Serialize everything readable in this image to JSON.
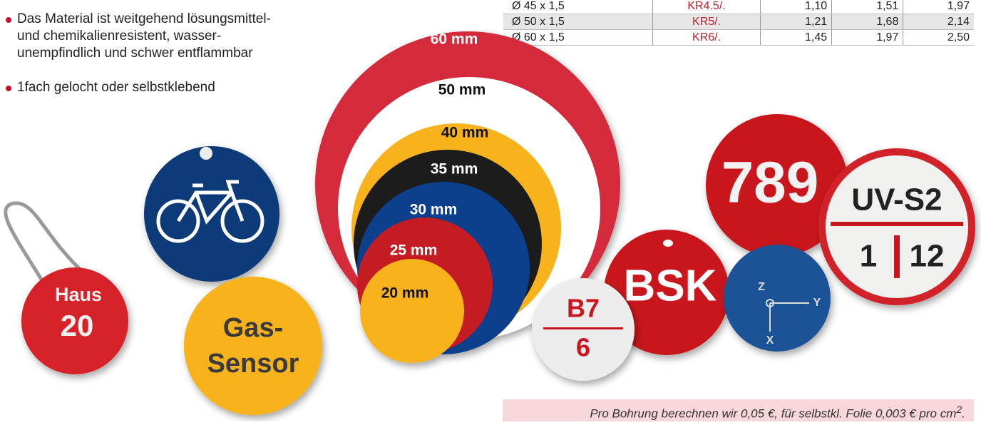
{
  "bullets": [
    "Das Material ist weitgehend lösungsmittel-\nund chemikalienresistent, wasser-\nunempfindlich und schwer entflammbar",
    "1fach gelocht oder selbstklebend"
  ],
  "table": {
    "rows": [
      [
        "Ø 45 x 1,5",
        "KR4.5/.",
        "1,10",
        "1,51",
        "1,97"
      ],
      [
        "Ø 50 x 1,5",
        "KR5/.",
        "1,21",
        "1,68",
        "2,14"
      ],
      [
        "Ø 60 x 1,5",
        "KR6/.",
        "1,45",
        "1,97",
        "2,50"
      ]
    ]
  },
  "sizes": [
    "60 mm",
    "50 mm",
    "40 mm",
    "35 mm",
    "30 mm",
    "25 mm",
    "20 mm"
  ],
  "tags": {
    "haus": "Haus",
    "haus_number": "20",
    "gas": "Gas-",
    "sensor": "Sensor",
    "number": "789",
    "uv": "UV-S2",
    "uv_left": "1",
    "uv_right": "12",
    "bsk": "BSK",
    "b7": "B7",
    "b7_lower": "6",
    "axis_z": "Z",
    "axis_y": "Y",
    "axis_x": "X"
  },
  "note": {
    "text": "Pro Bohrung berechnen wir 0,05 €, für selbstkl. Folie 0,003 € pro cm",
    "sup": "2",
    "end": "."
  }
}
